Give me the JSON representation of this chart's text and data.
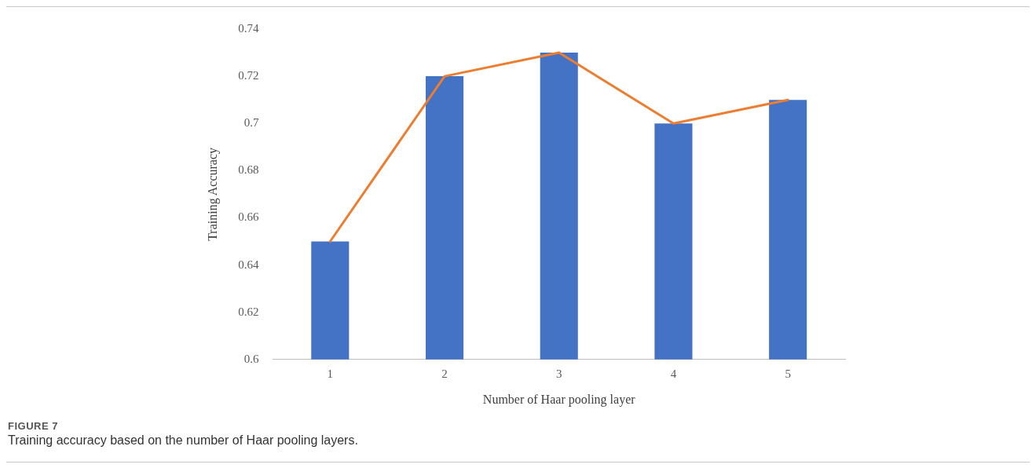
{
  "chart_data": {
    "type": "bar",
    "xlabel": "Number of Haar pooling layer",
    "ylabel": "Training Accuracy",
    "categories": [
      "1",
      "2",
      "3",
      "4",
      "5"
    ],
    "series": [
      {
        "color": "#4472c4",
        "values": [
          0.65,
          0.72,
          0.73,
          0.7,
          0.71
        ]
      },
      {
        "type": "line",
        "color": "#ed7d31",
        "values": [
          0.65,
          0.72,
          0.73,
          0.7,
          0.71
        ]
      }
    ],
    "ylim": [
      0.6,
      0.74
    ],
    "yticks": [
      0.6,
      0.62,
      0.64,
      0.66,
      0.68,
      0.7,
      0.72,
      0.74
    ],
    "grid": false,
    "legend": false,
    "marker": "none",
    "line_style": "solid",
    "annotations": [
      "FIGURE 7",
      "Training accuracy based on the number of Haar pooling layers."
    ]
  }
}
